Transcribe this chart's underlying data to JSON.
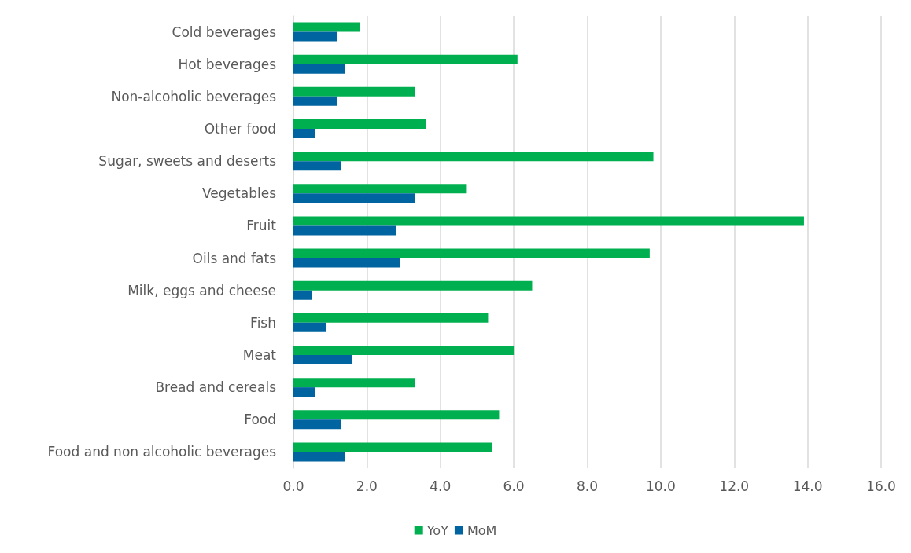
{
  "chart_data": {
    "type": "bar",
    "orientation": "horizontal",
    "categories": [
      "Cold beverages",
      "Hot beverages",
      "Non-alcoholic beverages",
      "Other food",
      "Sugar, sweets and deserts",
      "Vegetables",
      "Fruit",
      "Oils and fats",
      "Milk, eggs and cheese",
      "Fish",
      "Meat",
      "Bread and cereals",
      "Food",
      "Food and non alcoholic beverages"
    ],
    "series": [
      {
        "name": "YoY",
        "color": "#00b050",
        "values": [
          1.8,
          6.1,
          3.3,
          3.6,
          9.8,
          4.7,
          13.9,
          9.7,
          6.5,
          5.3,
          6.0,
          3.3,
          5.6,
          5.4
        ]
      },
      {
        "name": "MoM",
        "color": "#0064a0",
        "values": [
          1.2,
          1.4,
          1.2,
          0.6,
          1.3,
          3.3,
          2.8,
          2.9,
          0.5,
          0.9,
          1.6,
          0.6,
          1.3,
          1.4
        ]
      }
    ],
    "xlim": [
      0,
      16
    ],
    "xticks": [
      {
        "value": 0,
        "label": "0.0"
      },
      {
        "value": 2,
        "label": "2.0"
      },
      {
        "value": 4,
        "label": "4.0"
      },
      {
        "value": 6,
        "label": "6.0"
      },
      {
        "value": 8,
        "label": "8.0"
      },
      {
        "value": 10,
        "label": "10.0"
      },
      {
        "value": 12,
        "label": "12.0"
      },
      {
        "value": 14,
        "label": "14.0"
      },
      {
        "value": 16,
        "label": "16.0"
      }
    ],
    "grid": "x",
    "legend": "bottom"
  }
}
